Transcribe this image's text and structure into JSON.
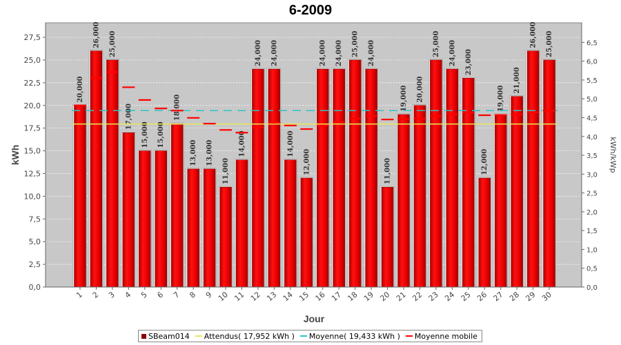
{
  "chart_data": {
    "type": "bar",
    "title": "6-2009",
    "xlabel": "Jour",
    "ylabel": "kWh",
    "ylabel_right": "kWh/kWp",
    "categories": [
      "1",
      "2",
      "3",
      "4",
      "5",
      "6",
      "7",
      "8",
      "9",
      "10",
      "11",
      "12",
      "13",
      "14",
      "15",
      "16",
      "17",
      "18",
      "19",
      "20",
      "21",
      "22",
      "23",
      "24",
      "25",
      "26",
      "27",
      "28",
      "29",
      "30"
    ],
    "ylim": [
      0,
      29.1
    ],
    "yticks": [
      "0,0",
      "2,5",
      "5,0",
      "7,5",
      "10,0",
      "12,5",
      "15,0",
      "17,5",
      "20,0",
      "22,5",
      "25,0",
      "27,5"
    ],
    "ylim_right": [
      0,
      7.02
    ],
    "yticks_right": [
      "0,0",
      "0,5",
      "1,0",
      "1,5",
      "2,0",
      "2,5",
      "3,0",
      "3,5",
      "4,0",
      "4,5",
      "5,0",
      "5,5",
      "6,0",
      "6,5"
    ],
    "grid": true,
    "legend_position": "bottom",
    "series": [
      {
        "name": "SBeam014",
        "kind": "bar",
        "color": "#e00000",
        "values": [
          20,
          26,
          25,
          17,
          15,
          15,
          18,
          13,
          13,
          11,
          14,
          24,
          24,
          14,
          12,
          24,
          24,
          25,
          24,
          11,
          19,
          20,
          25,
          24,
          23,
          12,
          19,
          21,
          26,
          25
        ],
        "labels": [
          "20,000",
          "26,000",
          "25,000",
          "17,000",
          "15,000",
          "15,000",
          "18,000",
          "13,000",
          "13,000",
          "11,000",
          "14,000",
          "24,000",
          "24,000",
          "14,000",
          "12,000",
          "24,000",
          "24,000",
          "25,000",
          "24,000",
          "11,000",
          "19,000",
          "20,000",
          "25,000",
          "24,000",
          "23,000",
          "12,000",
          "19,000",
          "21,000",
          "26,000",
          "25,000"
        ]
      },
      {
        "name": "Attendus( 17,952 kWh )",
        "kind": "reference",
        "color": "#e8e85a",
        "value": 17.952
      },
      {
        "name": "Moyenne( 19,433 kWh )",
        "kind": "reference",
        "color": "#2ec4c4",
        "value": 19.433
      },
      {
        "name": "Moyenne mobile",
        "kind": "dash",
        "color": "#ff0000",
        "values": [
          20,
          23,
          23.67,
          22,
          20.6,
          19.67,
          19.43,
          18.63,
          18,
          17.3,
          17,
          17.58,
          18.08,
          17.79,
          17.4,
          17.81,
          18.18,
          18.56,
          18.84,
          18.45,
          18.48,
          18.55,
          18.83,
          19.04,
          19.2,
          18.92,
          18.93,
          19,
          19.24,
          19.43
        ]
      }
    ]
  }
}
